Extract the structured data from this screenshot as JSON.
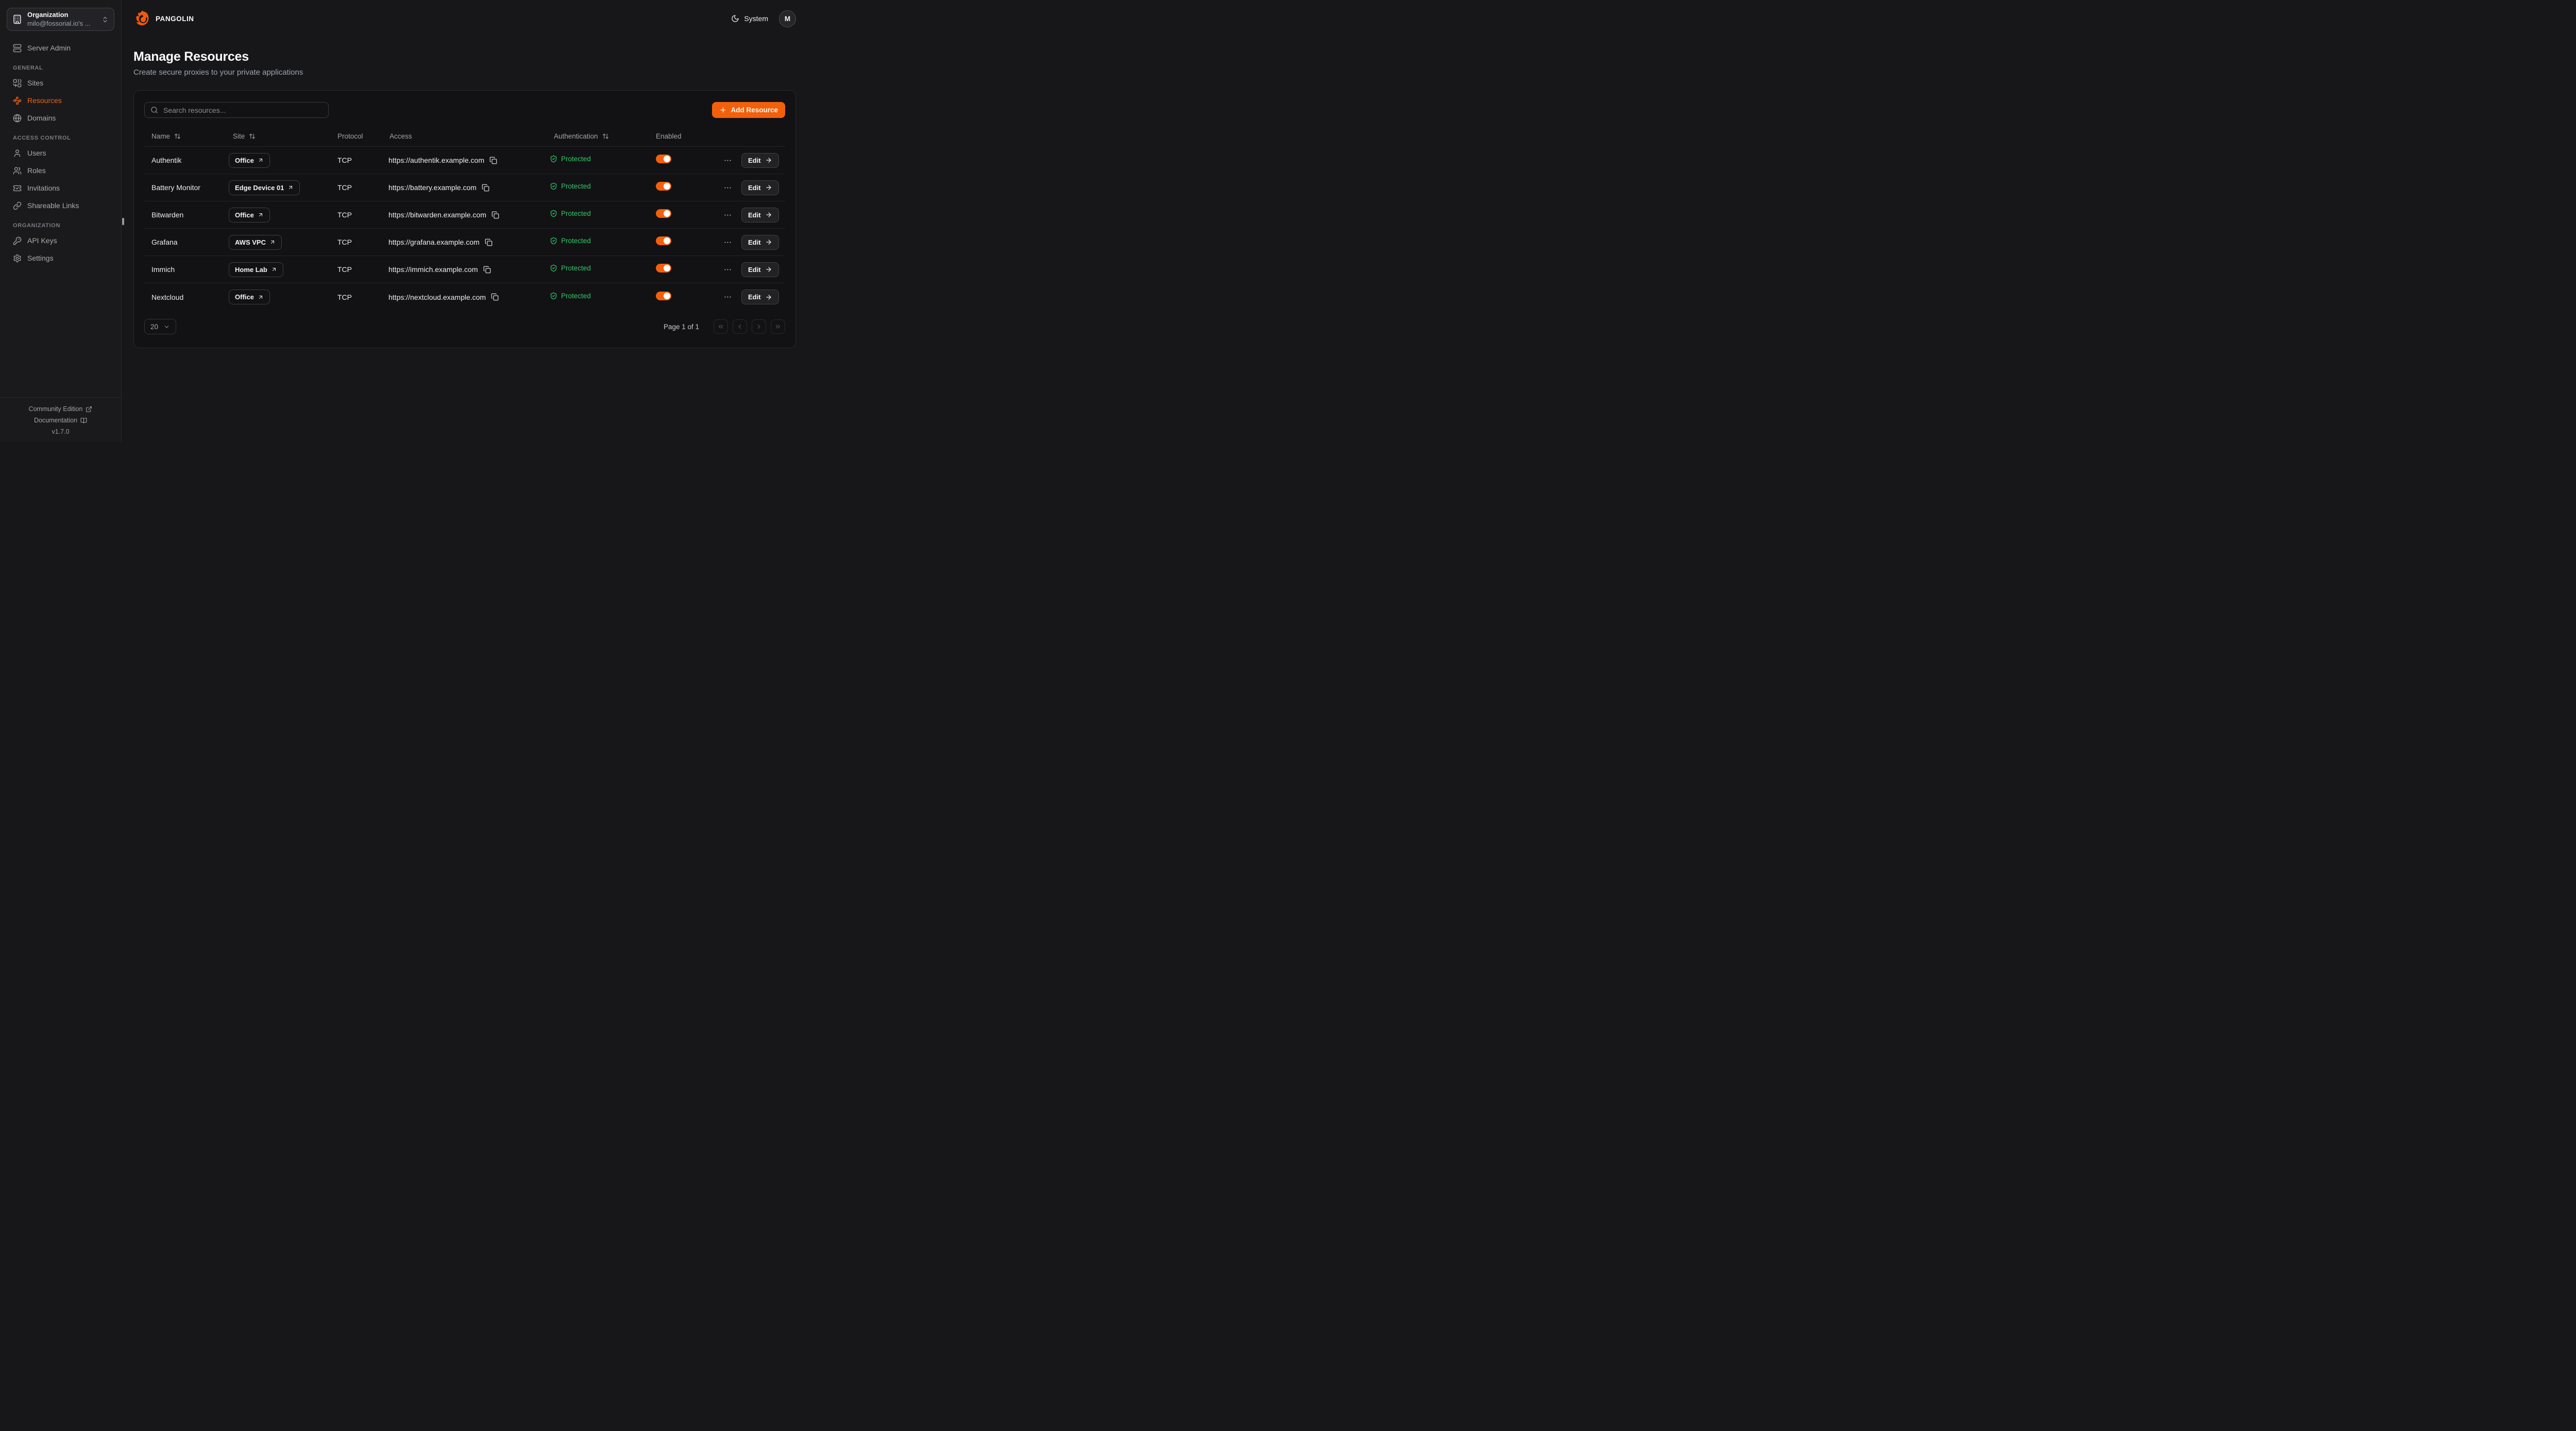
{
  "brand": {
    "name": "PANGOLIN",
    "logo_icon": "pangolin-logo"
  },
  "topbar": {
    "theme": {
      "label": "System",
      "icon": "moon"
    },
    "avatar": {
      "initial": "M"
    }
  },
  "sidebar": {
    "org": {
      "label": "Organization",
      "value": "milo@fossorial.io's ...",
      "icon": "building",
      "caret_icon": "chevrons-up-down"
    },
    "standalone": [
      {
        "label": "Server Admin",
        "icon": "server",
        "active": false
      }
    ],
    "sections": [
      {
        "title": "GENERAL",
        "items": [
          {
            "label": "Sites",
            "icon": "combine",
            "active": false
          },
          {
            "label": "Resources",
            "icon": "waypoints",
            "active": true
          },
          {
            "label": "Domains",
            "icon": "globe",
            "active": false
          }
        ]
      },
      {
        "title": "ACCESS CONTROL",
        "items": [
          {
            "label": "Users",
            "icon": "user",
            "active": false
          },
          {
            "label": "Roles",
            "icon": "users",
            "active": false
          },
          {
            "label": "Invitations",
            "icon": "ticket-check",
            "active": false
          },
          {
            "label": "Shareable Links",
            "icon": "link",
            "active": false
          }
        ]
      },
      {
        "title": "ORGANIZATION",
        "items": [
          {
            "label": "API Keys",
            "icon": "key",
            "active": false
          },
          {
            "label": "Settings",
            "icon": "settings",
            "active": false
          }
        ]
      }
    ],
    "footer": {
      "community": "Community Edition",
      "community_icon": "external-link",
      "docs": "Documentation",
      "docs_icon": "book-open",
      "version": "v1.7.0"
    }
  },
  "page": {
    "title": "Manage Resources",
    "subtitle": "Create secure proxies to your private applications"
  },
  "toolbar": {
    "search_placeholder": "Search resources...",
    "add_label": "Add Resource"
  },
  "table": {
    "columns": [
      {
        "label": "Name",
        "sortable": true
      },
      {
        "label": "Site",
        "sortable": true
      },
      {
        "label": "Protocol",
        "sortable": false
      },
      {
        "label": "Access",
        "sortable": false
      },
      {
        "label": "Authentication",
        "sortable": true
      },
      {
        "label": "Enabled",
        "sortable": false
      }
    ],
    "edit_label": "Edit",
    "rows": [
      {
        "name": "Authentik",
        "site": "Office",
        "protocol": "TCP",
        "access": "https://authentik.example.com",
        "auth": "Protected",
        "enabled": true
      },
      {
        "name": "Battery Monitor",
        "site": "Edge Device 01",
        "protocol": "TCP",
        "access": "https://battery.example.com",
        "auth": "Protected",
        "enabled": true
      },
      {
        "name": "Bitwarden",
        "site": "Office",
        "protocol": "TCP",
        "access": "https://bitwarden.example.com",
        "auth": "Protected",
        "enabled": true
      },
      {
        "name": "Grafana",
        "site": "AWS VPC",
        "protocol": "TCP",
        "access": "https://grafana.example.com",
        "auth": "Protected",
        "enabled": true
      },
      {
        "name": "Immich",
        "site": "Home Lab",
        "protocol": "TCP",
        "access": "https://immich.example.com",
        "auth": "Protected",
        "enabled": true
      },
      {
        "name": "Nextcloud",
        "site": "Office",
        "protocol": "TCP",
        "access": "https://nextcloud.example.com",
        "auth": "Protected",
        "enabled": true
      }
    ]
  },
  "pagination": {
    "page_size": "20",
    "status": "Page 1 of 1",
    "controls": [
      {
        "name": "first-page",
        "icon": "chevrons-left"
      },
      {
        "name": "previous-page",
        "icon": "chevron-left"
      },
      {
        "name": "next-page",
        "icon": "chevron-right"
      },
      {
        "name": "last-page",
        "icon": "chevrons-right"
      }
    ]
  },
  "colors": {
    "accent": "#F3600C",
    "success": "#2FC868"
  }
}
